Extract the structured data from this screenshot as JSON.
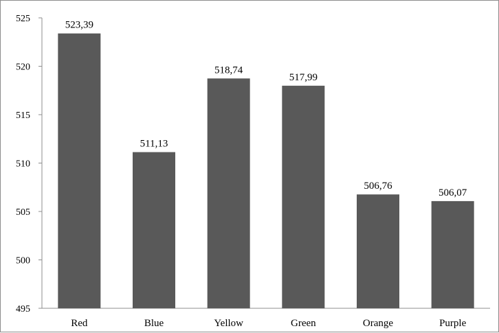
{
  "chart_data": {
    "type": "bar",
    "title": "",
    "xlabel": "",
    "ylabel": "",
    "categories": [
      "Red",
      "Blue",
      "Yellow",
      "Green",
      "Orange",
      "Purple"
    ],
    "values": [
      523.39,
      511.13,
      518.74,
      517.99,
      506.76,
      506.07
    ],
    "data_labels": [
      "523,39",
      "511,13",
      "518,74",
      "517,99",
      "506,76",
      "506,07"
    ],
    "ylim": [
      495,
      525
    ],
    "yticks": [
      495,
      500,
      505,
      510,
      515,
      520,
      525
    ],
    "ytick_labels": [
      "495",
      "500",
      "505",
      "510",
      "515",
      "520",
      "525"
    ],
    "grid": false,
    "legend": "none",
    "bar_color": "#595959"
  }
}
